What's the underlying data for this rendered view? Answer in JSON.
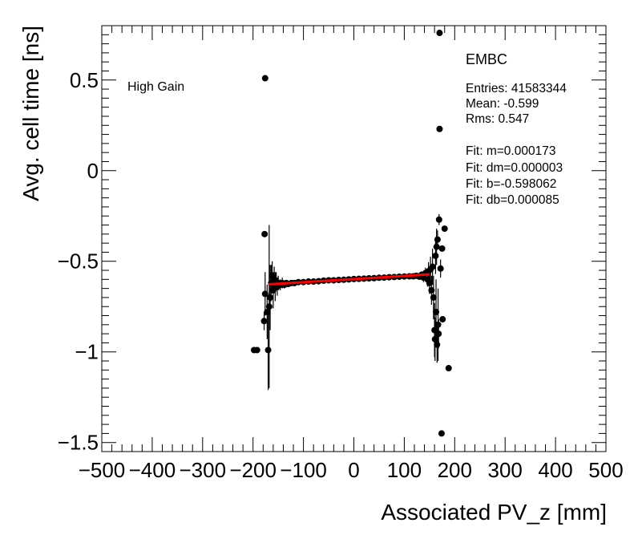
{
  "chart_data": {
    "type": "scatter",
    "xlabel": "Associated PV_z [mm]",
    "ylabel": "Avg. cell time [ns]",
    "xlim": [
      -500,
      500
    ],
    "ylim": [
      -1.55,
      0.8
    ],
    "xticks": [
      -500,
      -400,
      -300,
      -200,
      -100,
      0,
      100,
      200,
      300,
      400,
      500
    ],
    "xtick_labels": [
      "−500",
      "−400",
      "−300",
      "−200",
      "−100",
      "0",
      "100",
      "200",
      "300",
      "400",
      "500"
    ],
    "yticks": [
      -1.5,
      -1,
      -0.5,
      0,
      0.5
    ],
    "ytick_labels": [
      "−1.5",
      "−1",
      "−0.5",
      "0",
      "0.5"
    ],
    "grid": false,
    "annotation": "High Gain",
    "stats": {
      "title": "EMBC",
      "lines": [
        "Entries: 41583344",
        "Mean: -0.599",
        "Rms: 0.547",
        "",
        "Fit: m=0.000173",
        "Fit: dm=0.000003",
        "Fit: b=-0.598062",
        "Fit: db=0.000085"
      ]
    },
    "series": [
      {
        "points": [
          [
            -198,
            -0.99,
            0
          ],
          [
            -192,
            -0.99,
            0
          ],
          [
            -176,
            0.51,
            0
          ],
          [
            -177,
            -0.35,
            0
          ],
          [
            -176,
            -0.68,
            0.12
          ],
          [
            -178,
            -0.83,
            0.05
          ],
          [
            -172,
            -0.78,
            0.15
          ],
          [
            -170,
            -0.99,
            0.22
          ],
          [
            -168,
            -0.75,
            0.45
          ],
          [
            -166,
            -0.7,
            0.18
          ],
          [
            -164,
            -0.62,
            0.1
          ],
          [
            -162,
            -0.58,
            0.08
          ],
          [
            -160,
            -0.66,
            0.1
          ],
          [
            -158,
            -0.6,
            0.07
          ],
          [
            -156,
            -0.64,
            0.08
          ],
          [
            -154,
            -0.61,
            0.05
          ],
          [
            -152,
            -0.64,
            0.05
          ],
          [
            -150,
            -0.62,
            0.04
          ],
          [
            -146,
            -0.63,
            0.03
          ],
          [
            -142,
            -0.62,
            0.03
          ],
          [
            -138,
            -0.63,
            0.02
          ],
          [
            -134,
            -0.62,
            0.015
          ],
          [
            -130,
            -0.625,
            0.012
          ],
          [
            -124,
            -0.62,
            0.01
          ],
          [
            -118,
            -0.62,
            0.008
          ],
          [
            -110,
            -0.615,
            0.006
          ],
          [
            -100,
            -0.615,
            0.005
          ],
          [
            -90,
            -0.612,
            0.005
          ],
          [
            -80,
            -0.612,
            0.004
          ],
          [
            -70,
            -0.61,
            0.004
          ],
          [
            -60,
            -0.607,
            0.004
          ],
          [
            -50,
            -0.605,
            0.003
          ],
          [
            -40,
            -0.605,
            0.003
          ],
          [
            -30,
            -0.603,
            0.003
          ],
          [
            -20,
            -0.602,
            0.003
          ],
          [
            -10,
            -0.6,
            0.003
          ],
          [
            0,
            -0.598,
            0.003
          ],
          [
            10,
            -0.597,
            0.003
          ],
          [
            20,
            -0.596,
            0.003
          ],
          [
            30,
            -0.594,
            0.003
          ],
          [
            40,
            -0.593,
            0.003
          ],
          [
            50,
            -0.591,
            0.003
          ],
          [
            60,
            -0.59,
            0.004
          ],
          [
            70,
            -0.588,
            0.004
          ],
          [
            80,
            -0.587,
            0.004
          ],
          [
            90,
            -0.585,
            0.005
          ],
          [
            100,
            -0.584,
            0.005
          ],
          [
            110,
            -0.583,
            0.006
          ],
          [
            118,
            -0.583,
            0.008
          ],
          [
            124,
            -0.58,
            0.01
          ],
          [
            130,
            -0.585,
            0.012
          ],
          [
            134,
            -0.575,
            0.02
          ],
          [
            138,
            -0.59,
            0.025
          ],
          [
            142,
            -0.565,
            0.03
          ],
          [
            146,
            -0.6,
            0.04
          ],
          [
            148,
            -0.555,
            0.05
          ],
          [
            150,
            -0.62,
            0.06
          ],
          [
            152,
            -0.545,
            0.07
          ],
          [
            154,
            -0.66,
            0.08
          ],
          [
            156,
            -0.53,
            0.1
          ],
          [
            158,
            -0.7,
            0.12
          ],
          [
            160,
            -0.88,
            0.15
          ],
          [
            161,
            -0.93,
            0.12
          ],
          [
            162,
            -0.47,
            0.1
          ],
          [
            163,
            -0.78,
            0.18
          ],
          [
            164,
            -0.42,
            0.1
          ],
          [
            165,
            -0.96,
            0.1
          ],
          [
            166,
            -0.38,
            0.05
          ],
          [
            167,
            -0.85,
            0.2
          ],
          [
            168,
            -0.9,
            0.08
          ],
          [
            169,
            -0.27,
            0.03
          ],
          [
            170,
            0.23,
            0
          ],
          [
            170,
            0.76,
            0
          ],
          [
            172,
            -0.54,
            0.05
          ],
          [
            175,
            -0.43,
            0
          ],
          [
            176,
            -0.82,
            0
          ],
          [
            174,
            -1.45,
            0
          ],
          [
            188,
            -1.09,
            0
          ],
          [
            180,
            -0.32,
            0
          ]
        ]
      }
    ],
    "fit": {
      "slope": 0.000173,
      "intercept": -0.598062,
      "x_range": [
        -170,
        150
      ]
    }
  }
}
